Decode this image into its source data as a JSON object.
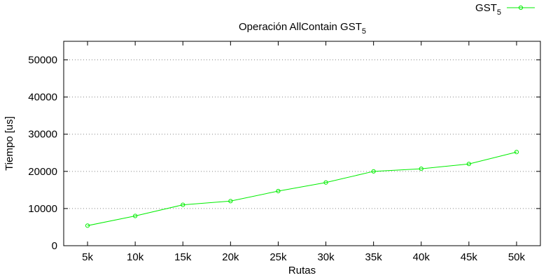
{
  "chart_data": {
    "type": "line",
    "title": "Operación AllContain GST",
    "title_subscript": "5",
    "xlabel": "Rutas",
    "ylabel": "Tiempo [us]",
    "categories": [
      "5k",
      "10k",
      "15k",
      "20k",
      "25k",
      "30k",
      "35k",
      "40k",
      "45k",
      "50k"
    ],
    "ylim": [
      0,
      55000
    ],
    "yticks": [
      0,
      10000,
      20000,
      30000,
      40000,
      50000
    ],
    "grid": true,
    "legend_position": "top-right",
    "series": [
      {
        "name": "GST",
        "name_subscript": "5",
        "color": "#00ee00",
        "marker": "circle",
        "values": [
          5400,
          8000,
          11000,
          12000,
          14700,
          17000,
          20000,
          20700,
          22000,
          25200
        ]
      }
    ]
  }
}
